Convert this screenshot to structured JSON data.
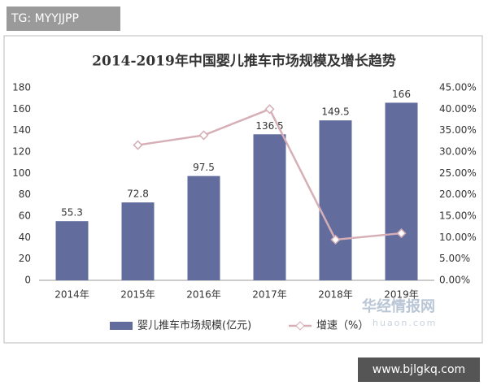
{
  "chart_data": {
    "type": "bar",
    "title": "2014-2019年中国婴儿推车市场规模及增长趋势",
    "categories": [
      "2014年",
      "2015年",
      "2016年",
      "2017年",
      "2018年",
      "2019年"
    ],
    "series": [
      {
        "name": "婴儿推车市场规模(亿元)",
        "type": "bar",
        "color": "#626d9e",
        "values": [
          55.3,
          72.8,
          97.5,
          136.5,
          149.5,
          166
        ]
      },
      {
        "name": "增速（%）",
        "type": "line",
        "axis": "y2",
        "color": "#d6aeb5",
        "values": [
          null,
          31.6,
          33.9,
          40.0,
          9.5,
          11.0
        ]
      }
    ],
    "ylim": [
      0,
      180
    ],
    "yticks": [
      0,
      20,
      40,
      60,
      80,
      100,
      120,
      140,
      160,
      180
    ],
    "y2lim": [
      0,
      45
    ],
    "y2ticks": [
      {
        "value": 0,
        "label": "0.00%"
      },
      {
        "value": 5,
        "label": "5.00%"
      },
      {
        "value": 10,
        "label": "10.00%"
      },
      {
        "value": 15,
        "label": "15.00%"
      },
      {
        "value": 20,
        "label": "20.00%"
      },
      {
        "value": 25,
        "label": "25.00%"
      },
      {
        "value": 30,
        "label": "30.00%"
      },
      {
        "value": 35,
        "label": "35.00%"
      },
      {
        "value": 40,
        "label": "40.00%"
      },
      {
        "value": 45,
        "label": "45.00%"
      }
    ],
    "grid": false,
    "legend": "bottom",
    "watermarks": [
      "TG: MYYJJPP",
      "华经情报网",
      "huaon.com",
      "www.bjlgkq.com"
    ]
  }
}
